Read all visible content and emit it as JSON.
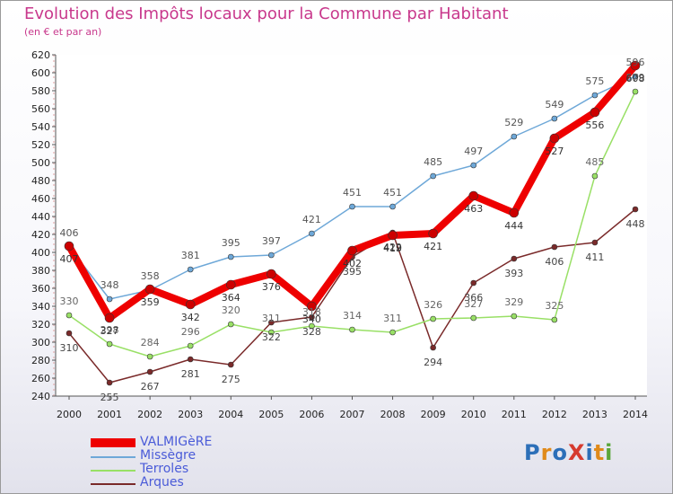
{
  "title": "Evolution des Impôts locaux pour la Commune par Habitant",
  "subtitle": "(en € et par an)",
  "logo": "ProXiti",
  "chart_data": {
    "type": "line",
    "x": [
      "2000",
      "2001",
      "2002",
      "2003",
      "2004",
      "2005",
      "2006",
      "2007",
      "2008",
      "2009",
      "2010",
      "2011",
      "2012",
      "2013",
      "2014"
    ],
    "ylim": [
      240,
      620
    ],
    "yticks": [
      240,
      260,
      280,
      300,
      320,
      340,
      360,
      380,
      400,
      420,
      440,
      460,
      480,
      500,
      520,
      540,
      560,
      580,
      600,
      620
    ],
    "grid": false,
    "legend_position": "bottom-left",
    "series": [
      {
        "name": "VALMIGèRE",
        "color": "#ee0000",
        "values": [
          407,
          327,
          359,
          342,
          364,
          376,
          340,
          402,
          419,
          421,
          463,
          444,
          527,
          556,
          608
        ],
        "labels": [
          "407",
          "327",
          "359",
          "342",
          "364",
          "376",
          "340",
          "402",
          "419",
          "421",
          "463",
          "444",
          "527",
          "556",
          "608"
        ]
      },
      {
        "name": "Missègre",
        "color": "#6ea8d8",
        "values": [
          406,
          348,
          358,
          381,
          395,
          397,
          421,
          451,
          451,
          485,
          497,
          529,
          549,
          575,
          596
        ],
        "labels": [
          "406",
          "348",
          "358",
          "381",
          "395",
          "397",
          "421",
          "451",
          "451",
          "485",
          "497",
          "529",
          "549",
          "575",
          "596"
        ]
      },
      {
        "name": "Terroles",
        "color": "#99e066",
        "values": [
          330,
          298,
          284,
          296,
          320,
          311,
          318,
          314,
          311,
          326,
          327,
          329,
          325,
          485,
          579
        ],
        "labels": [
          "330",
          "298",
          "284",
          "296",
          "320",
          "311",
          "318",
          "314",
          "311",
          "326",
          "327",
          "329",
          "325",
          "485",
          "579"
        ]
      },
      {
        "name": "Arques",
        "color": "#7a2a2a",
        "values": [
          310,
          255,
          267,
          281,
          275,
          322,
          328,
          395,
          422,
          294,
          366,
          393,
          406,
          411,
          448
        ],
        "labels": [
          "310",
          "255",
          "267",
          "281",
          "275",
          "322",
          "328",
          "395",
          "422",
          "294",
          "366",
          "393",
          "406",
          "411",
          "448"
        ]
      }
    ]
  }
}
